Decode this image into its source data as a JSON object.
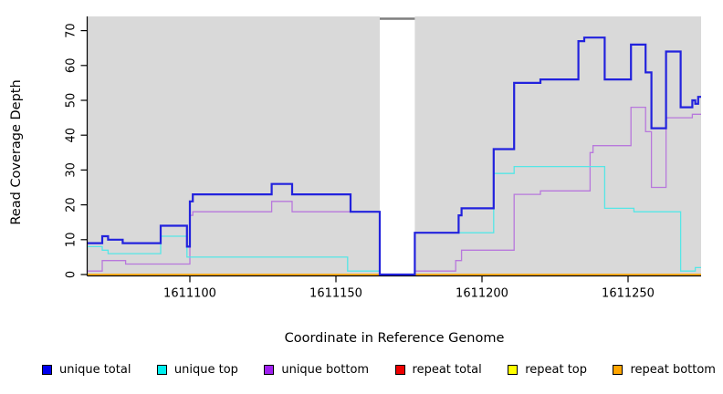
{
  "figure": {
    "x_title": "Coordinate in Reference Genome",
    "y_title": "Read Coverage Depth"
  },
  "chart_data": {
    "type": "line",
    "subtype": "step",
    "title": "",
    "xlabel": "Coordinate in Reference Genome",
    "ylabel": "Read Coverage Depth",
    "x_domain": [
      1611065,
      1611275
    ],
    "y_domain": [
      0,
      73
    ],
    "x_ticks": [
      "1611100",
      "1611150",
      "1611200",
      "1611250"
    ],
    "x_tick_values": [
      1611100,
      1611150,
      1611200,
      1611250
    ],
    "y_ticks": [
      "0",
      "10",
      "20",
      "30",
      "40",
      "50",
      "60",
      "70"
    ],
    "y_tick_values": [
      0,
      10,
      20,
      30,
      40,
      50,
      60,
      70
    ],
    "grid": false,
    "panel_bg": "#D9D9D9",
    "gap_region": {
      "start": 1611165,
      "end": 1611177,
      "cap_color": "#7F7F7F"
    },
    "legend_position": "bottom",
    "series": [
      {
        "name": "repeat total",
        "color": "#DD2222",
        "width": 1.2,
        "points": [
          [
            1611065,
            0
          ]
        ]
      },
      {
        "name": "repeat top",
        "color": "#FFFF00",
        "width": 1.2,
        "points": [
          [
            1611065,
            0
          ]
        ]
      },
      {
        "name": "repeat bottom",
        "color": "#FFA500",
        "width": 1.6,
        "points": [
          [
            1611065,
            0
          ]
        ]
      },
      {
        "name": "unique bottom",
        "color": "#B878DC",
        "width": 1.3,
        "points": [
          [
            1611065,
            1
          ],
          [
            1611070,
            4
          ],
          [
            1611078,
            3
          ],
          [
            1611100,
            17
          ],
          [
            1611101,
            18
          ],
          [
            1611128,
            21
          ],
          [
            1611135,
            18
          ],
          [
            1611165,
            0
          ],
          [
            1611177,
            1
          ],
          [
            1611191,
            4
          ],
          [
            1611193,
            7
          ],
          [
            1611211,
            23
          ],
          [
            1611220,
            24
          ],
          [
            1611237,
            35
          ],
          [
            1611238,
            37
          ],
          [
            1611251,
            48
          ],
          [
            1611256,
            41
          ],
          [
            1611258,
            25
          ],
          [
            1611263,
            45
          ],
          [
            1611272,
            46
          ]
        ]
      },
      {
        "name": "unique top",
        "color": "#55E6E6",
        "width": 1.3,
        "points": [
          [
            1611065,
            8
          ],
          [
            1611070,
            7
          ],
          [
            1611072,
            6
          ],
          [
            1611090,
            11
          ],
          [
            1611099,
            5
          ],
          [
            1611154,
            1
          ],
          [
            1611165,
            0
          ],
          [
            1611177,
            12
          ],
          [
            1611204,
            29
          ],
          [
            1611211,
            31
          ],
          [
            1611242,
            19
          ],
          [
            1611252,
            18
          ],
          [
            1611268,
            1
          ],
          [
            1611273,
            2
          ]
        ]
      },
      {
        "name": "unique total",
        "color": "#2222DD",
        "width": 2.2,
        "points": [
          [
            1611065,
            9
          ],
          [
            1611070,
            11
          ],
          [
            1611072,
            10
          ],
          [
            1611077,
            9
          ],
          [
            1611090,
            14
          ],
          [
            1611099,
            8
          ],
          [
            1611100,
            21
          ],
          [
            1611101,
            23
          ],
          [
            1611128,
            26
          ],
          [
            1611135,
            23
          ],
          [
            1611155,
            18
          ],
          [
            1611165,
            0
          ],
          [
            1611177,
            12
          ],
          [
            1611192,
            17
          ],
          [
            1611193,
            19
          ],
          [
            1611204,
            36
          ],
          [
            1611211,
            55
          ],
          [
            1611220,
            56
          ],
          [
            1611233,
            67
          ],
          [
            1611235,
            68
          ],
          [
            1611242,
            56
          ],
          [
            1611251,
            66
          ],
          [
            1611256,
            58
          ],
          [
            1611258,
            42
          ],
          [
            1611263,
            64
          ],
          [
            1611268,
            48
          ],
          [
            1611272,
            50
          ],
          [
            1611273,
            49
          ],
          [
            1611274,
            51
          ]
        ]
      }
    ]
  },
  "legend": {
    "items": [
      {
        "label": "unique total",
        "color": "#0000EE"
      },
      {
        "label": "unique top",
        "color": "#00EEEE"
      },
      {
        "label": "unique bottom",
        "color": "#A020F0"
      },
      {
        "label": "repeat total",
        "color": "#EE0000"
      },
      {
        "label": "repeat top",
        "color": "#FFFF00"
      },
      {
        "label": "repeat bottom",
        "color": "#FFA500"
      }
    ]
  }
}
